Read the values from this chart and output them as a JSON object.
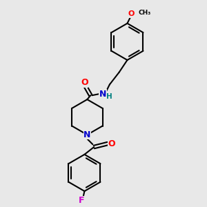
{
  "background_color": "#e8e8e8",
  "bond_color": "#000000",
  "atom_colors": {
    "N": "#0000cc",
    "O": "#ff0000",
    "F": "#cc00cc",
    "H": "#008080",
    "C": "#000000"
  },
  "figsize": [
    3.0,
    3.0
  ],
  "dpi": 100,
  "lw": 1.5,
  "ring_r": 30
}
